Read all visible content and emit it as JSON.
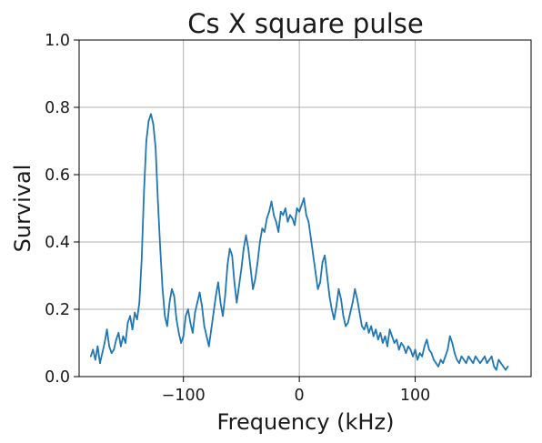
{
  "chart_data": {
    "type": "line",
    "title": "Cs X square pulse",
    "xlabel": "Frequency (kHz)",
    "ylabel": "Survival",
    "xlim": [
      -190,
      200
    ],
    "ylim": [
      0,
      1
    ],
    "xticks": [
      -100,
      0,
      100
    ],
    "xtick_labels": [
      "−100",
      "0",
      "100"
    ],
    "yticks": [
      0,
      0.2,
      0.4,
      0.6,
      0.8,
      1.0
    ],
    "ytick_labels": [
      "0.0",
      "0.2",
      "0.4",
      "0.6",
      "0.8",
      "1.0"
    ],
    "grid": true,
    "legend": null,
    "color": "#1f77b4",
    "series": [
      {
        "x": [
          -180,
          -178,
          -176,
          -174,
          -172,
          -170,
          -168,
          -166,
          -164,
          -162,
          -160,
          -158,
          -156,
          -154,
          -152,
          -150,
          -148,
          -146,
          -144,
          -142,
          -140,
          -138,
          -136,
          -134,
          -132,
          -130,
          -128,
          -126,
          -124,
          -122,
          -120,
          -118,
          -116,
          -114,
          -112,
          -110,
          -108,
          -106,
          -104,
          -102,
          -100,
          -98,
          -96,
          -94,
          -92,
          -90,
          -88,
          -86,
          -84,
          -82,
          -80,
          -78,
          -76,
          -74,
          -72,
          -70,
          -68,
          -66,
          -64,
          -62,
          -60,
          -58,
          -56,
          -54,
          -52,
          -50,
          -48,
          -46,
          -44,
          -42,
          -40,
          -38,
          -36,
          -34,
          -32,
          -30,
          -28,
          -26,
          -24,
          -22,
          -20,
          -18,
          -16,
          -14,
          -12,
          -10,
          -8,
          -6,
          -4,
          -2,
          0,
          2,
          4,
          6,
          8,
          10,
          12,
          14,
          16,
          18,
          20,
          22,
          24,
          26,
          28,
          30,
          32,
          34,
          36,
          38,
          40,
          42,
          44,
          46,
          48,
          50,
          52,
          54,
          56,
          58,
          60,
          62,
          64,
          66,
          68,
          70,
          72,
          74,
          76,
          78,
          80,
          82,
          84,
          86,
          88,
          90,
          92,
          94,
          96,
          98,
          100,
          102,
          104,
          106,
          108,
          110,
          112,
          114,
          116,
          118,
          120,
          122,
          124,
          126,
          128,
          130,
          132,
          134,
          136,
          138,
          140,
          142,
          144,
          146,
          148,
          150,
          152,
          154,
          156,
          158,
          160,
          162,
          164,
          166,
          168,
          170,
          172,
          174,
          176,
          178,
          180
        ],
        "y": [
          0.06,
          0.08,
          0.05,
          0.09,
          0.04,
          0.07,
          0.1,
          0.14,
          0.09,
          0.07,
          0.08,
          0.11,
          0.13,
          0.09,
          0.12,
          0.1,
          0.16,
          0.18,
          0.14,
          0.19,
          0.17,
          0.22,
          0.35,
          0.55,
          0.7,
          0.76,
          0.78,
          0.75,
          0.68,
          0.52,
          0.38,
          0.26,
          0.18,
          0.15,
          0.22,
          0.26,
          0.24,
          0.17,
          0.13,
          0.1,
          0.12,
          0.18,
          0.2,
          0.16,
          0.13,
          0.19,
          0.22,
          0.25,
          0.21,
          0.15,
          0.12,
          0.09,
          0.14,
          0.19,
          0.24,
          0.28,
          0.22,
          0.18,
          0.24,
          0.33,
          0.38,
          0.36,
          0.28,
          0.22,
          0.27,
          0.32,
          0.38,
          0.42,
          0.38,
          0.32,
          0.26,
          0.29,
          0.34,
          0.4,
          0.44,
          0.43,
          0.47,
          0.49,
          0.52,
          0.48,
          0.46,
          0.43,
          0.49,
          0.48,
          0.5,
          0.46,
          0.48,
          0.47,
          0.45,
          0.5,
          0.49,
          0.51,
          0.53,
          0.48,
          0.46,
          0.41,
          0.36,
          0.31,
          0.26,
          0.28,
          0.34,
          0.36,
          0.3,
          0.24,
          0.2,
          0.17,
          0.21,
          0.26,
          0.23,
          0.18,
          0.15,
          0.16,
          0.19,
          0.22,
          0.26,
          0.23,
          0.19,
          0.15,
          0.14,
          0.16,
          0.13,
          0.15,
          0.12,
          0.14,
          0.11,
          0.13,
          0.1,
          0.12,
          0.09,
          0.14,
          0.12,
          0.1,
          0.11,
          0.08,
          0.1,
          0.09,
          0.07,
          0.09,
          0.08,
          0.06,
          0.08,
          0.05,
          0.07,
          0.06,
          0.09,
          0.11,
          0.08,
          0.07,
          0.05,
          0.04,
          0.03,
          0.05,
          0.04,
          0.06,
          0.08,
          0.12,
          0.1,
          0.07,
          0.05,
          0.04,
          0.06,
          0.05,
          0.04,
          0.06,
          0.05,
          0.04,
          0.06,
          0.05,
          0.04,
          0.05,
          0.06,
          0.04,
          0.05,
          0.06,
          0.03,
          0.02,
          0.05,
          0.04,
          0.03,
          0.02,
          0.03
        ]
      }
    ]
  }
}
